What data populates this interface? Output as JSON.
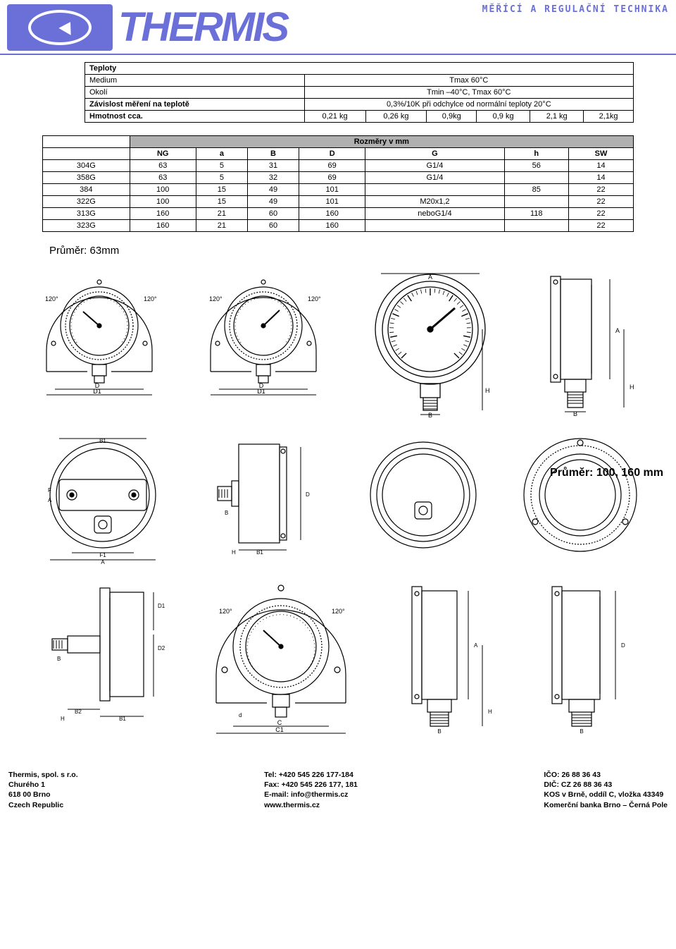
{
  "brand": "THERMIS",
  "tagline": "MĚŘÍCÍ A REGULAČNÍ TECHNIKA",
  "colors": {
    "brand": "#6b6fd8",
    "table_header_bg": "#b0b0b0",
    "border": "#000000",
    "text": "#000000",
    "bg": "#ffffff"
  },
  "spec_table": {
    "rows": [
      {
        "type": "head",
        "cells": [
          "Teploty"
        ]
      },
      {
        "type": "kv",
        "k": "Medium",
        "v": "Tmax 60°C"
      },
      {
        "type": "kv",
        "k": "Okolí",
        "v": "Tmin –40°C, Tmax 60°C"
      },
      {
        "type": "kv_bold",
        "k": "Závislost měření na teplotě",
        "v": "0,3%/10K při odchylce od normální teploty 20°C"
      },
      {
        "type": "weight",
        "k": "Hmotnost cca.",
        "cells": [
          "0,21 kg",
          "0,26 kg",
          "0,9kg",
          "0,9 kg",
          "2,1 kg",
          "2,1kg"
        ]
      }
    ]
  },
  "dims_table": {
    "title": "Rozměry v mm",
    "columns": [
      "",
      "NG",
      "a",
      "B",
      "D",
      "G",
      "h",
      "SW"
    ],
    "rows": [
      [
        "304G",
        "63",
        "5",
        "31",
        "69",
        "G1/4",
        "56",
        "14"
      ],
      [
        "358G",
        "63",
        "5",
        "32",
        "69",
        "G1/4",
        "",
        "14"
      ],
      [
        "384",
        "100",
        "15",
        "49",
        "101",
        "",
        "85",
        "22"
      ],
      [
        "322G",
        "100",
        "15",
        "49",
        "101",
        "M20x1,2",
        "",
        "22"
      ],
      [
        "313G",
        "160",
        "21",
        "60",
        "160",
        "neboG1/4",
        "118",
        "22"
      ],
      [
        "323G",
        "160",
        "21",
        "60",
        "160",
        "",
        "",
        "22"
      ]
    ],
    "g_merge_note": "G column rows 3-6 visually merged with 'M20x1,2 neboG1/4'"
  },
  "label_63": "Průměr: 63mm",
  "label_100_160": "Průměr: 100, 160 mm",
  "diagram_labels": {
    "angle": "120°",
    "d": "D",
    "d1": "D1",
    "a": "A",
    "b": "B",
    "c": "C",
    "c1": "C1",
    "h": "H",
    "b1": "B1",
    "b2": "B2",
    "d2": "D2",
    "f": "F",
    "small_d": "d"
  },
  "footer": {
    "left": [
      "Thermis, spol. s r.o.",
      "Churého 1",
      "618 00  Brno",
      "Czech Republic"
    ],
    "mid": [
      "Tel: +420 545 226 177-184",
      "Fax: +420 545 226 177, 181",
      "E-mail: info@thermis.cz",
      "www.thermis.cz"
    ],
    "right": [
      "IČO: 26 88 36 43",
      "DIČ: CZ 26 88 36 43",
      "KOS v Brně, oddíl C, vložka 43349",
      "Komerční banka Brno – Černá Pole"
    ]
  }
}
